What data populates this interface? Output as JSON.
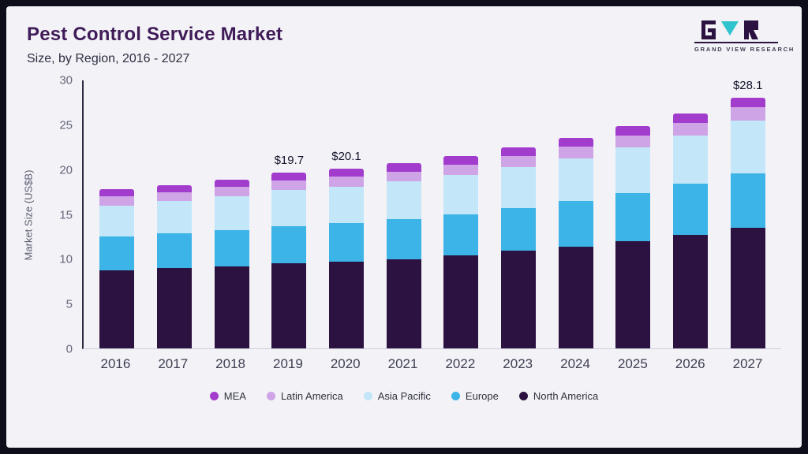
{
  "header": {
    "title": "Pest Control Service Market",
    "subtitle": "Size, by Region, 2016 - 2027",
    "logo_text": "GRAND VIEW RESEARCH"
  },
  "colors": {
    "title": "#3f1b57",
    "frame": "#0e0e1a",
    "card_background": "#f2f2f7",
    "logo_teal": "#2fc3ce",
    "logo_dark": "#2c1240"
  },
  "chart_data": {
    "type": "bar",
    "stacked": true,
    "title": "Pest Control Service Market Size, by Region, 2016 - 2027",
    "xlabel": "",
    "ylabel": "Market Size (US$B)",
    "ylim": [
      0,
      30
    ],
    "yticks": [
      0,
      5,
      10,
      15,
      20,
      25,
      30
    ],
    "grid": false,
    "legend_position": "bottom",
    "categories": [
      "2016",
      "2017",
      "2018",
      "2019",
      "2020",
      "2021",
      "2022",
      "2023",
      "2024",
      "2025",
      "2026",
      "2027"
    ],
    "series": [
      {
        "name": "North America",
        "color": "#2c1240",
        "values": [
          8.7,
          9.0,
          9.2,
          9.5,
          9.7,
          10.0,
          10.4,
          10.9,
          11.4,
          12.0,
          12.7,
          13.5
        ]
      },
      {
        "name": "Europe",
        "color": "#3cb4e7",
        "values": [
          3.8,
          3.9,
          4.0,
          4.2,
          4.3,
          4.5,
          4.6,
          4.8,
          5.1,
          5.4,
          5.7,
          6.1
        ]
      },
      {
        "name": "Asia Pacific",
        "color": "#c3e7f8",
        "values": [
          3.5,
          3.6,
          3.8,
          4.0,
          4.1,
          4.2,
          4.4,
          4.6,
          4.8,
          5.1,
          5.4,
          5.9
        ]
      },
      {
        "name": "Latin America",
        "color": "#cfa4e6",
        "values": [
          1.0,
          1.0,
          1.1,
          1.1,
          1.1,
          1.1,
          1.2,
          1.2,
          1.3,
          1.3,
          1.4,
          1.5
        ]
      },
      {
        "name": "MEA",
        "color": "#a23ccc",
        "values": [
          0.8,
          0.8,
          0.8,
          0.9,
          0.9,
          0.9,
          0.9,
          1.0,
          1.0,
          1.1,
          1.1,
          1.1
        ]
      }
    ],
    "totals": [
      17.8,
      18.3,
      18.9,
      19.7,
      20.1,
      20.7,
      21.5,
      22.5,
      23.6,
      24.9,
      26.3,
      28.1
    ],
    "annotations": [
      {
        "category": "2019",
        "label": "$19.7"
      },
      {
        "category": "2020",
        "label": "$20.1"
      },
      {
        "category": "2027",
        "label": "$28.1"
      }
    ],
    "legend": [
      "MEA",
      "Latin America",
      "Asia Pacific",
      "Europe",
      "North America"
    ]
  }
}
